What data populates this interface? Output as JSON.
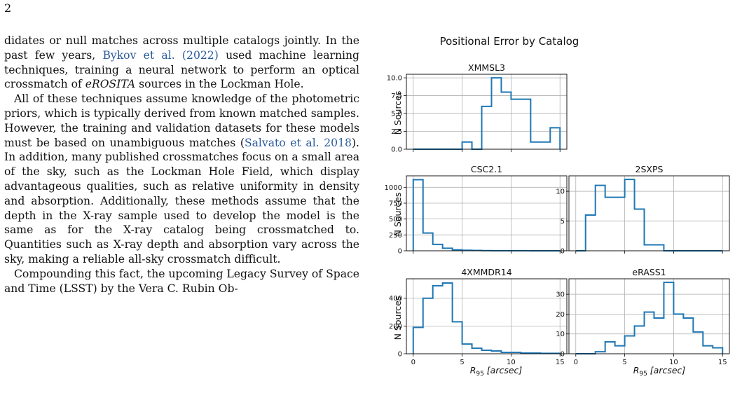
{
  "page": {
    "number": "2"
  },
  "text": {
    "p1": {
      "a": "didates or null matches across multiple catalogs jointly. In the past few years, ",
      "cite_text": "Bykov et al. (2022)",
      "b": " used machine learning techniques, training a neural network to perform an optical crossmatch of ",
      "em": "eROSITA",
      "c": " sources in the Lockman Hole."
    },
    "p2": {
      "a": "All of these techniques assume knowledge of the photometric priors, which is typically derived from known matched samples. However, the training and validation datasets for these models must be based on unambiguous matches (",
      "cite_text": "Salvato et al. 2018",
      "b": "). In addition, many published crossmatches focus on a small area of the sky, such as the Lockman Hole Field, which display advantageous qualities, such as relative uniformity in density and absorption. Additionally, these methods assume that the depth in the X-ray sample used to develop the model is the same as for the X-ray catalog being crossmatched to. Quantities such as X-ray depth and absorption vary across the sky, making a reliable all-sky crossmatch difficult."
    },
    "p3": {
      "a": "Compounding this fact, the upcoming Legacy Survey of Space and Time (LSST) by the Vera C. Rubin Ob-"
    }
  },
  "colors": {
    "series": "#1f77b4",
    "citation": "#2a5a9b",
    "grid": "#b0b0b0"
  },
  "figure": {
    "title": "Positional Error by Catalog",
    "ylabel": "N Sources",
    "xlabel_main": "R",
    "xlabel_sub": "95",
    "xlabel_rest": " [arcsec]"
  },
  "chart_data": [
    {
      "type": "histogram",
      "title": "XMMSL3",
      "ylabel": "N Sources",
      "xlabel": "",
      "bin_edges": [
        0,
        1,
        2,
        3,
        4,
        5,
        6,
        7,
        8,
        9,
        10,
        11,
        12,
        13,
        14,
        15
      ],
      "counts": [
        0,
        0,
        0,
        0,
        0,
        1,
        0,
        6,
        10,
        8,
        7,
        7,
        1,
        1,
        3
      ],
      "xlim": [
        -0.7,
        15.7
      ],
      "ylim": [
        0,
        10.5
      ],
      "yticks": [
        "0.0",
        "2.5",
        "5.0",
        "7.5",
        "10.0"
      ],
      "ytick_values": [
        0,
        2.5,
        5,
        7.5,
        10
      ],
      "xticks": [],
      "grid": true
    },
    {
      "type": "histogram",
      "title": "CSC2.1",
      "ylabel": "N Sources",
      "xlabel": "",
      "bin_edges": [
        0,
        1,
        2,
        3,
        4,
        5,
        6,
        7,
        8,
        9,
        10,
        11,
        12,
        13,
        14,
        15
      ],
      "counts": [
        1120,
        280,
        100,
        40,
        15,
        8,
        5,
        3,
        2,
        1,
        1,
        1,
        0,
        0,
        0
      ],
      "xlim": [
        -0.7,
        15.7
      ],
      "ylim": [
        0,
        1180
      ],
      "yticks": [
        "0",
        "250",
        "500",
        "750",
        "1000"
      ],
      "ytick_values": [
        0,
        250,
        500,
        750,
        1000
      ],
      "xticks": [],
      "grid": true
    },
    {
      "type": "histogram",
      "title": "2SXPS",
      "ylabel": "",
      "xlabel": "",
      "bin_edges": [
        0,
        1,
        2,
        3,
        4,
        5,
        6,
        7,
        8,
        9,
        10,
        11,
        12,
        13,
        14,
        15
      ],
      "counts": [
        0,
        6,
        11,
        9,
        9,
        12,
        7,
        1,
        1,
        0,
        0,
        0,
        0,
        0,
        0
      ],
      "xlim": [
        -0.7,
        15.7
      ],
      "ylim": [
        0,
        12.6
      ],
      "yticks": [
        "0",
        "5",
        "10"
      ],
      "ytick_values": [
        0,
        5,
        10
      ],
      "xticks": [],
      "grid": true
    },
    {
      "type": "histogram",
      "title": "4XMMDR14",
      "ylabel": "N Sources",
      "xlabel": "R95 [arcsec]",
      "bin_edges": [
        0,
        1,
        2,
        3,
        4,
        5,
        6,
        7,
        8,
        9,
        10,
        11,
        12,
        13,
        14,
        15
      ],
      "counts": [
        190,
        400,
        490,
        510,
        230,
        70,
        40,
        25,
        20,
        10,
        10,
        5,
        5,
        3,
        3
      ],
      "xlim": [
        -0.7,
        15.7
      ],
      "ylim": [
        0,
        540
      ],
      "yticks": [
        "0",
        "200",
        "400"
      ],
      "ytick_values": [
        0,
        200,
        400
      ],
      "xticks": [
        "0",
        "5",
        "10",
        "15"
      ],
      "xtick_values": [
        0,
        5,
        10,
        15
      ],
      "grid": true
    },
    {
      "type": "histogram",
      "title": "eRASS1",
      "ylabel": "",
      "xlabel": "R95 [arcsec]",
      "bin_edges": [
        0,
        1,
        2,
        3,
        4,
        5,
        6,
        7,
        8,
        9,
        10,
        11,
        12,
        13,
        14,
        15
      ],
      "counts": [
        0,
        0,
        1,
        6,
        4,
        9,
        14,
        21,
        18,
        36,
        20,
        18,
        11,
        4,
        3
      ],
      "xlim": [
        -0.7,
        15.7
      ],
      "ylim": [
        0,
        37.8
      ],
      "yticks": [
        "0",
        "10",
        "20",
        "30"
      ],
      "ytick_values": [
        0,
        10,
        20,
        30
      ],
      "xticks": [
        "0",
        "5",
        "10",
        "15"
      ],
      "xtick_values": [
        0,
        5,
        10,
        15
      ],
      "grid": true
    }
  ]
}
